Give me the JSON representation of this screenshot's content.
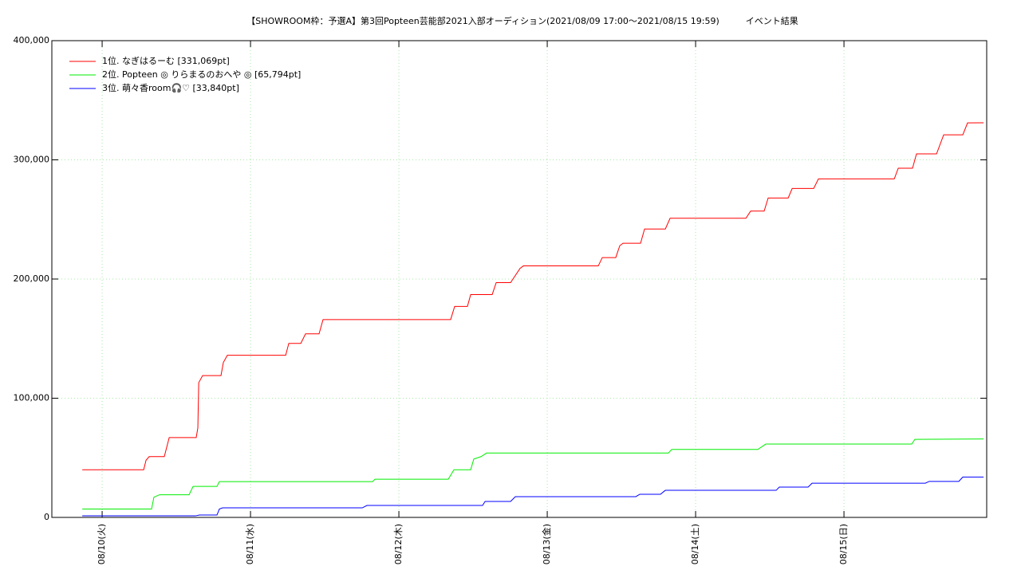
{
  "chart_data": {
    "type": "line",
    "title": "【SHOWROOM枠：予選A】第3回Popteen芸能部2021入部オーディション(2021/08/09 17:00～2021/08/15 19:59)　　　イベント結果",
    "xlim": [
      9.661,
      15.962
    ],
    "ylim": [
      0,
      400000
    ],
    "grid": true,
    "legend": "top-left",
    "xticks": [
      {
        "value": 10,
        "label": "08/10(火)"
      },
      {
        "value": 11,
        "label": "08/11(水)"
      },
      {
        "value": 12,
        "label": "08/12(木)"
      },
      {
        "value": 13,
        "label": "08/13(金)"
      },
      {
        "value": 14,
        "label": "08/14(土)"
      },
      {
        "value": 15,
        "label": "08/15(日)"
      }
    ],
    "yticks": [
      0,
      {
        "value": 100000,
        "label": "100,000"
      },
      {
        "value": 200000,
        "label": "200,000"
      },
      {
        "value": 300000,
        "label": "300,000"
      },
      {
        "value": 400000,
        "label": "400,000"
      }
    ],
    "series": [
      {
        "name": "1位. なぎはるーむ [331,069pt]",
        "color": "#ff0000",
        "x": [
          9.866,
          10.28,
          10.296,
          10.317,
          10.419,
          10.452,
          10.634,
          10.645,
          10.651,
          10.677,
          10.801,
          10.817,
          10.844,
          11.237,
          11.258,
          11.339,
          11.371,
          11.462,
          11.489,
          12.349,
          12.376,
          12.462,
          12.484,
          12.629,
          12.656,
          12.753,
          12.769,
          12.817,
          12.839,
          13.344,
          13.371,
          13.462,
          13.489,
          13.511,
          13.629,
          13.656,
          13.796,
          13.828,
          14.339,
          14.371,
          14.462,
          14.489,
          14.624,
          14.651,
          14.796,
          14.828,
          15.339,
          15.366,
          15.462,
          15.489,
          15.624,
          15.672,
          15.801,
          15.833,
          15.941
        ],
        "values": [
          40000,
          40000,
          48000,
          51000,
          51000,
          67000,
          67000,
          75000,
          113000,
          119000,
          119000,
          130000,
          136000,
          136000,
          146000,
          146000,
          154000,
          154000,
          166000,
          166000,
          177000,
          177000,
          187000,
          187000,
          197000,
          197000,
          200000,
          209000,
          211000,
          211000,
          218000,
          218000,
          228000,
          230000,
          230000,
          242000,
          242000,
          251000,
          251000,
          257000,
          257000,
          268000,
          268000,
          276000,
          276000,
          284000,
          284000,
          293000,
          293000,
          305000,
          305000,
          321000,
          321000,
          331000,
          331069
        ]
      },
      {
        "name": "2位. Popteen ◎ りらまるのおへや ◎ [65,794pt]",
        "color": "#00ee00",
        "x": [
          9.866,
          10.333,
          10.349,
          10.387,
          10.586,
          10.613,
          10.774,
          10.79,
          11.823,
          11.839,
          12.333,
          12.371,
          12.484,
          12.505,
          12.554,
          12.591,
          13.817,
          13.839,
          14.419,
          14.473,
          15.457,
          15.478,
          15.941
        ],
        "values": [
          7000,
          7000,
          17000,
          19000,
          19000,
          26000,
          26000,
          30000,
          30000,
          32000,
          32000,
          40000,
          40000,
          49000,
          51000,
          54000,
          54000,
          57000,
          57000,
          61500,
          61500,
          65500,
          65794
        ]
      },
      {
        "name": "3位. 萌々香room🎧♡ [33,840pt]",
        "color": "#0000ff",
        "x": [
          9.866,
          10.629,
          10.656,
          10.774,
          10.79,
          10.812,
          11.753,
          11.785,
          12.564,
          12.581,
          12.753,
          12.785,
          13.597,
          13.624,
          13.763,
          13.796,
          14.543,
          14.564,
          14.758,
          14.785,
          15.548,
          15.575,
          15.774,
          15.801,
          15.941
        ],
        "values": [
          1300,
          1300,
          2000,
          2000,
          7000,
          8000,
          8000,
          10000,
          10000,
          13400,
          13400,
          17400,
          17400,
          19400,
          19400,
          22700,
          22700,
          25400,
          25400,
          28700,
          28700,
          30200,
          30200,
          33840,
          33840
        ]
      }
    ]
  }
}
